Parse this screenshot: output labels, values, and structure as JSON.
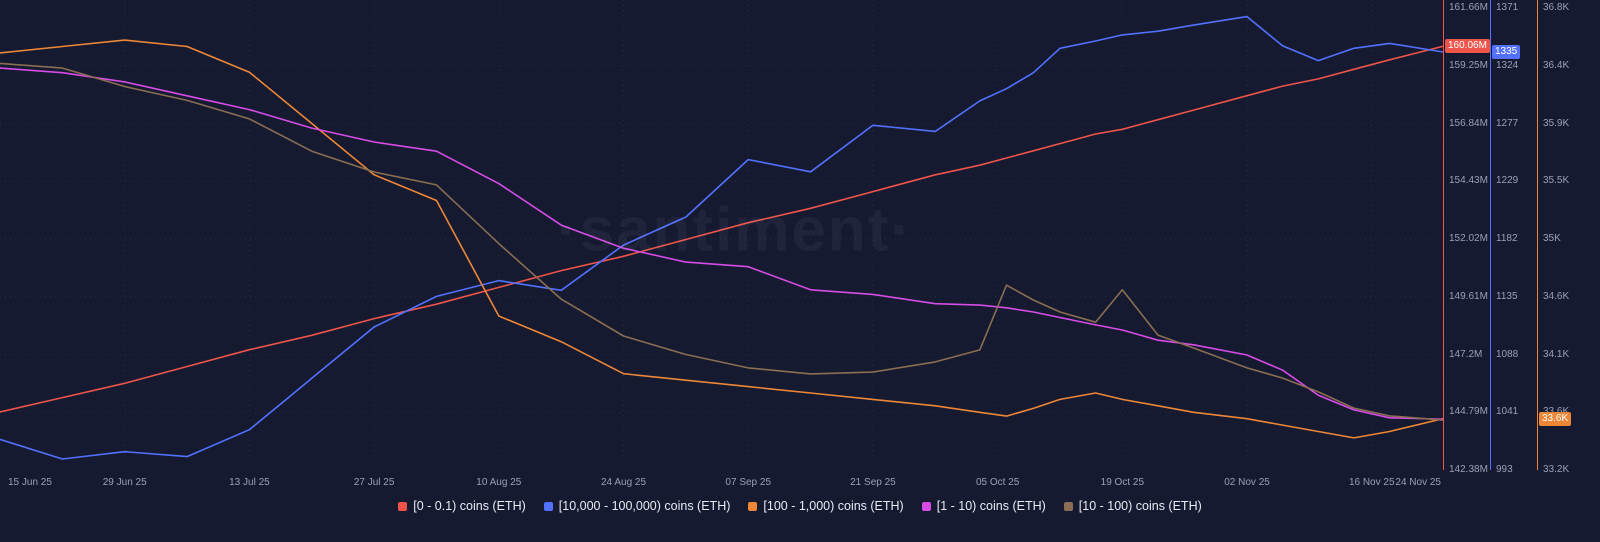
{
  "watermark": "·santiment·",
  "chart_data": {
    "type": "line",
    "grid": "dotted",
    "legend_position": "bottom-center",
    "x_axis": {
      "unit": "date",
      "domain_days": [
        0,
        162
      ],
      "ticks": [
        {
          "day": 0,
          "label": "15 Jun 25"
        },
        {
          "day": 14,
          "label": "29 Jun 25"
        },
        {
          "day": 28,
          "label": "13 Jul 25"
        },
        {
          "day": 42,
          "label": "27 Jul 25"
        },
        {
          "day": 56,
          "label": "10 Aug 25"
        },
        {
          "day": 70,
          "label": "24 Aug 25"
        },
        {
          "day": 84,
          "label": "07 Sep 25"
        },
        {
          "day": 98,
          "label": "21 Sep 25"
        },
        {
          "day": 112,
          "label": "05 Oct 25"
        },
        {
          "day": 126,
          "label": "19 Oct 25"
        },
        {
          "day": 140,
          "label": "02 Nov 25"
        },
        {
          "day": 154,
          "label": "16 Nov 25"
        },
        {
          "day": 162,
          "label": "24 Nov 25"
        }
      ]
    },
    "y_axes": [
      {
        "id": "supply_m",
        "color": "#ed544a",
        "min": 142.38,
        "max": 161.66,
        "tick_labels": [
          "161.66M",
          "159.25M",
          "156.84M",
          "154.43M",
          "152.02M",
          "149.61M",
          "147.2M",
          "144.79M",
          "142.38M"
        ],
        "badge": {
          "label": "160.06M",
          "value": 160.06
        }
      },
      {
        "id": "addresses",
        "color": "#5271ff",
        "min": 993,
        "max": 1371,
        "tick_labels": [
          "1371",
          "1324",
          "1277",
          "1229",
          "1182",
          "1135",
          "1088",
          "1041",
          "993"
        ],
        "badge": {
          "label": "1335",
          "value": 1335
        }
      },
      {
        "id": "supply_k",
        "color": "#ee8637",
        "min": 33.2,
        "max": 36.8,
        "tick_labels": [
          "36.8K",
          "36.4K",
          "35.9K",
          "35.5K",
          "35K",
          "34.6K",
          "34.1K",
          "33.6K",
          "33.2K"
        ],
        "badge": {
          "label": "33.6K",
          "value": 33.6
        }
      }
    ],
    "x_days": [
      0,
      7,
      14,
      21,
      28,
      35,
      42,
      49,
      56,
      63,
      70,
      77,
      84,
      91,
      98,
      105,
      110,
      113,
      116,
      119,
      123,
      126,
      130,
      134,
      140,
      144,
      148,
      152,
      156,
      162
    ],
    "series": [
      {
        "name": "[0 - 0.1) coins (ETH)",
        "color": "#ed544a",
        "axis": "supply_m",
        "values": [
          144.8,
          145.4,
          146.0,
          146.7,
          147.4,
          148.0,
          148.7,
          149.3,
          150.0,
          150.7,
          151.3,
          152.0,
          152.7,
          153.3,
          154.0,
          154.7,
          155.1,
          155.4,
          155.7,
          156.0,
          156.4,
          156.6,
          157.0,
          157.4,
          158.0,
          158.4,
          158.7,
          159.1,
          159.5,
          160.06
        ]
      },
      {
        "name": "[10,000 - 100,000) coins (ETH)",
        "color": "#5271ff",
        "axis": "addresses",
        "values": [
          1018,
          1002,
          1008,
          1004,
          1026,
          1068,
          1110,
          1135,
          1148,
          1140,
          1177,
          1200,
          1247,
          1237,
          1275,
          1270,
          1295,
          1305,
          1318,
          1338,
          1344,
          1349,
          1352,
          1357,
          1364,
          1340,
          1328,
          1338,
          1342,
          1335
        ]
      },
      {
        "name": "[100 - 1,000) coins (ETH)",
        "color": "#ee8637",
        "axis": "supply_k",
        "values": [
          36.45,
          36.5,
          36.55,
          36.5,
          36.3,
          35.9,
          35.5,
          35.3,
          34.4,
          34.2,
          33.95,
          33.9,
          33.85,
          33.8,
          33.75,
          33.7,
          33.65,
          33.62,
          33.68,
          33.75,
          33.8,
          33.75,
          33.7,
          33.65,
          33.6,
          33.55,
          33.5,
          33.45,
          33.5,
          33.6
        ]
      },
      {
        "name": "[1 - 10) coins (ETH)",
        "color": "#d74ce6",
        "axis": "normalized",
        "values": [
          0.87,
          0.86,
          0.84,
          0.81,
          0.78,
          0.74,
          0.71,
          0.69,
          0.62,
          0.53,
          0.48,
          0.45,
          0.44,
          0.39,
          0.38,
          0.36,
          0.357,
          0.351,
          0.342,
          0.33,
          0.314,
          0.303,
          0.281,
          0.271,
          0.249,
          0.216,
          0.162,
          0.13,
          0.113,
          0.11
        ]
      },
      {
        "name": "[10 - 100) coins (ETH)",
        "color": "#8a6d52",
        "axis": "normalized",
        "values": [
          0.88,
          0.87,
          0.83,
          0.8,
          0.76,
          0.69,
          0.645,
          0.617,
          0.49,
          0.37,
          0.29,
          0.25,
          0.221,
          0.208,
          0.212,
          0.234,
          0.26,
          0.4,
          0.368,
          0.342,
          0.32,
          0.39,
          0.292,
          0.264,
          0.221,
          0.199,
          0.169,
          0.134,
          0.117,
          0.108
        ]
      }
    ],
    "note": "Series with axis 'normalized' have no visible y-axis in the screenshot; their values are estimated fractions of plot height (0 = bottom, 1 = top)."
  }
}
